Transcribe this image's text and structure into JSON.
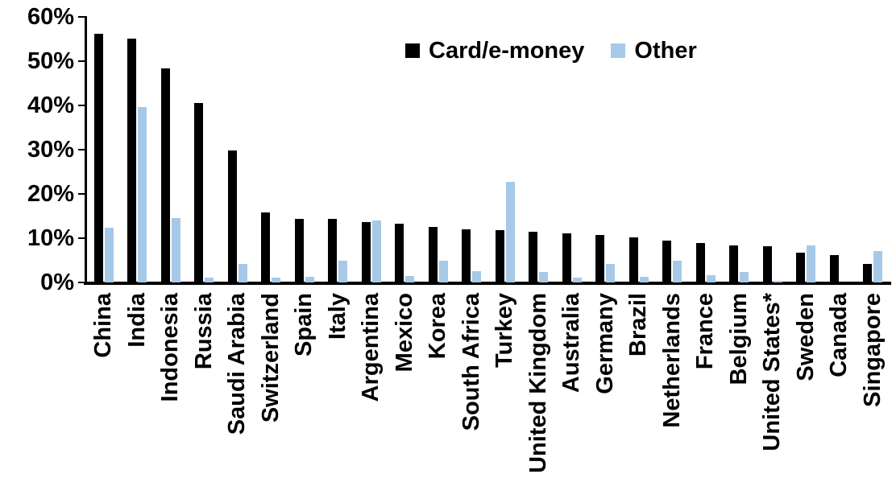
{
  "chart_data": {
    "type": "bar",
    "title": "",
    "categories": [
      "China",
      "India",
      "Indonesia",
      "Russia",
      "Saudi Arabia",
      "Switzerland",
      "Spain",
      "Italy",
      "Argentina",
      "Mexico",
      "Korea",
      "South Africa",
      "Turkey",
      "United Kingdom",
      "Australia",
      "Germany",
      "Brazil",
      "Netherlands",
      "France",
      "Belgium",
      "United States*",
      "Sweden",
      "Canada",
      "Singapore"
    ],
    "series": [
      {
        "name": "Card/e-money",
        "color": "#000000",
        "values": [
          56.2,
          55.0,
          48.3,
          40.6,
          29.9,
          15.8,
          14.3,
          14.3,
          13.6,
          13.2,
          12.5,
          12.0,
          11.9,
          11.4,
          11.1,
          10.8,
          10.2,
          9.5,
          8.9,
          8.4,
          8.1,
          6.8,
          6.2,
          4.2
        ]
      },
      {
        "name": "Other",
        "color": "#A6C9E8",
        "values": [
          12.4,
          39.7,
          14.6,
          1.1,
          4.1,
          1.0,
          1.2,
          4.9,
          14.0,
          1.4,
          4.9,
          2.5,
          22.8,
          2.3,
          1.1,
          4.1,
          1.3,
          4.9,
          1.7,
          2.3,
          0.3,
          8.3,
          0.0,
          7.0
        ]
      }
    ],
    "y_axis": {
      "ticks": [
        "0%",
        "10%",
        "20%",
        "30%",
        "40%",
        "50%",
        "60%"
      ],
      "min": 0,
      "max": 60,
      "step": 10
    },
    "xlabel": "",
    "ylabel": "",
    "grid": false,
    "legend_position": "top-center",
    "x_label_rotation": 90
  }
}
